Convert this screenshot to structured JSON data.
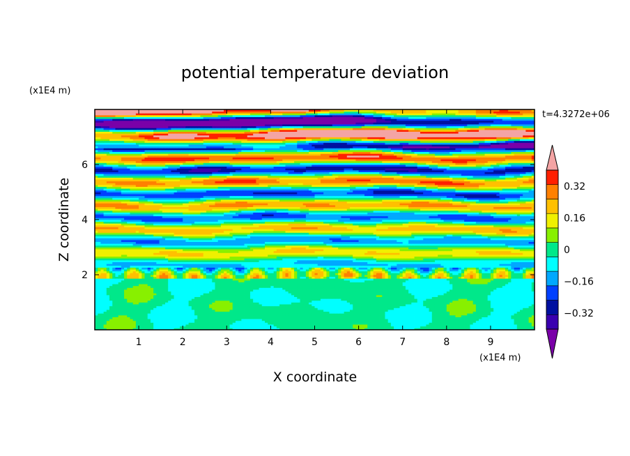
{
  "chart_data": {
    "type": "heatmap",
    "title": "potential temperature deviation",
    "xlabel": "X coordinate",
    "ylabel": "Z coordinate",
    "x_units": "(x1E4 m)",
    "y_units": "(x1E4 m)",
    "time_label": "t=4.3272e+06",
    "xlim": [
      0,
      10
    ],
    "ylim": [
      0,
      8
    ],
    "x_ticks": [
      "1",
      "2",
      "3",
      "4",
      "5",
      "6",
      "7",
      "8",
      "9"
    ],
    "y_ticks": [
      "2",
      "4",
      "6"
    ],
    "colorbar": {
      "levels": [
        -0.48,
        -0.4,
        -0.32,
        -0.24,
        -0.16,
        -0.08,
        0,
        0.08,
        0.16,
        0.24,
        0.32,
        0.4,
        0.48
      ],
      "tick_labels": [
        "0.32",
        "0.16",
        "0",
        "−0.16",
        "−0.32"
      ],
      "tick_values": [
        0.32,
        0.16,
        0,
        -0.16,
        -0.32
      ],
      "colors": [
        "#7a00a8",
        "#3a00b0",
        "#0010a0",
        "#0040ff",
        "#00a8ff",
        "#00ffff",
        "#00e88a",
        "#88f000",
        "#f0f000",
        "#ffc000",
        "#ff8000",
        "#ff2000",
        "#f4a4a4"
      ],
      "extend": "both"
    }
  }
}
